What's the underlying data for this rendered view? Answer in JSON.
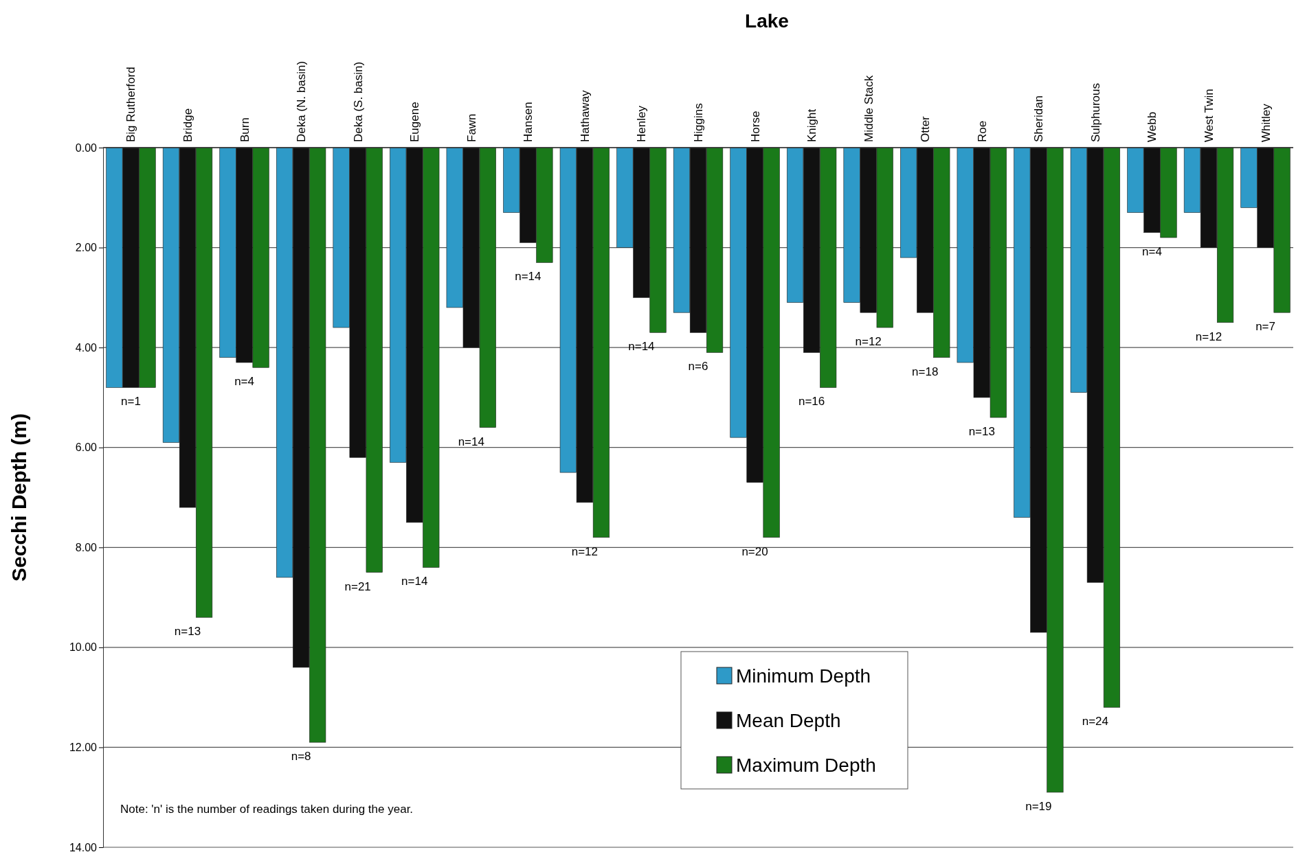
{
  "chart_data": {
    "type": "bar",
    "xlabel": "Lake",
    "ylabel": "Secchi Depth (m)",
    "categories": [
      "Big Rutherford",
      "Bridge",
      "Burn",
      "Deka (N. basin)",
      "Deka (S. basin)",
      "Eugene",
      "Fawn",
      "Hansen",
      "Hathaway",
      "Henley",
      "Higgins",
      "Horse",
      "Knight",
      "Middle Stack",
      "Otter",
      "Roe",
      "Sheridan",
      "Sulphurous",
      "Webb",
      "West Twin",
      "Whitley"
    ],
    "series": [
      {
        "name": "Minimum Depth",
        "color": "#2e9ac8",
        "values": [
          4.8,
          5.9,
          4.2,
          8.6,
          3.6,
          6.3,
          3.2,
          1.3,
          6.5,
          2.0,
          3.3,
          5.8,
          3.1,
          3.1,
          2.2,
          4.3,
          7.4,
          4.9,
          1.3,
          1.3,
          1.2
        ]
      },
      {
        "name": "Mean Depth",
        "color": "#111111",
        "values": [
          4.8,
          7.2,
          4.3,
          10.4,
          6.2,
          7.5,
          4.0,
          1.9,
          7.1,
          3.0,
          3.7,
          6.7,
          4.1,
          3.3,
          3.3,
          5.0,
          9.7,
          8.7,
          1.7,
          2.0,
          2.0
        ]
      },
      {
        "name": "Maximum Depth",
        "color": "#1a7a1a",
        "values": [
          4.8,
          9.4,
          4.4,
          11.9,
          8.5,
          8.4,
          5.6,
          2.3,
          7.8,
          3.7,
          4.1,
          7.8,
          4.8,
          3.6,
          4.2,
          5.4,
          12.9,
          11.2,
          1.8,
          3.5,
          3.3
        ]
      }
    ],
    "ylim": [
      14,
      0
    ],
    "yticks": [
      {
        "value": 0,
        "label": "0.00"
      },
      {
        "value": 2,
        "label": "2.00"
      },
      {
        "value": 4,
        "label": "4.00"
      },
      {
        "value": 6,
        "label": "6.00"
      },
      {
        "value": 8,
        "label": "8.00"
      },
      {
        "value": 10,
        "label": "10.00"
      },
      {
        "value": 12,
        "label": "12.00"
      },
      {
        "value": 14,
        "label": "14.00"
      }
    ],
    "grid": "y",
    "legend": "bottom",
    "annotations": [
      "n=1",
      "n=13",
      "n=4",
      "n=8",
      "n=21",
      "n=14",
      "n=14",
      "n=14",
      "n=12",
      "n=14",
      "n=6",
      "n=20",
      "n=16",
      "n=12",
      "n=18",
      "n=13",
      "n=19",
      "n=24",
      "n=4",
      "n=12",
      "n=7",
      "Note:  'n' is the number of readings taken during the year."
    ]
  }
}
